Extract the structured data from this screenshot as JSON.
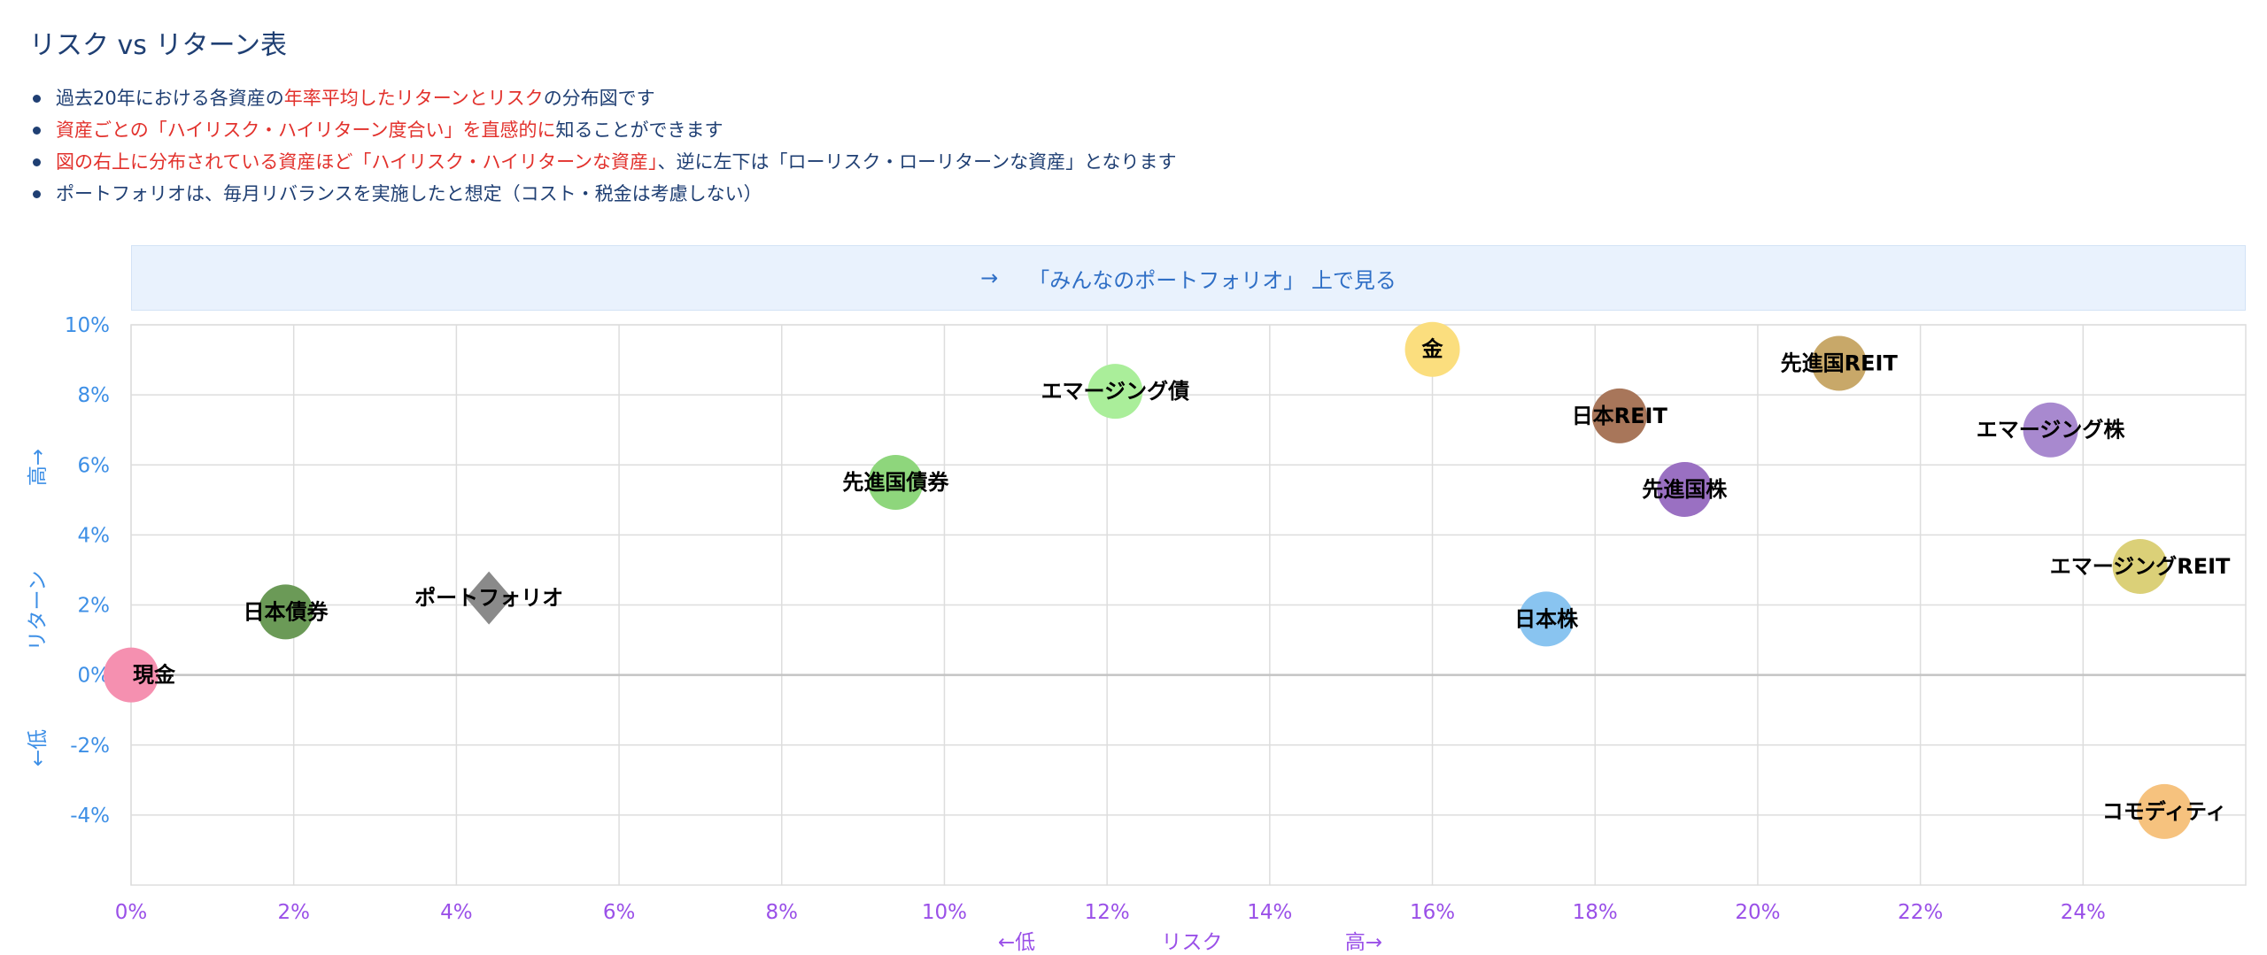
{
  "title": "リスク vs リターン表",
  "notes": [
    {
      "parts": [
        {
          "text": "過去20年における各資産の",
          "hl": false
        },
        {
          "text": "年率平均したリターンとリスク",
          "hl": true
        },
        {
          "text": "の分布図です",
          "hl": false
        }
      ]
    },
    {
      "parts": [
        {
          "text": "資産ごとの「ハイリスク・ハイリターン度合い」を直感的に",
          "hl": true
        },
        {
          "text": "知ることができます",
          "hl": false
        }
      ]
    },
    {
      "parts": [
        {
          "text": "図の右上に分布されている資産ほど「ハイリスク・ハイリターンな資産」",
          "hl": true
        },
        {
          "text": "、逆に左下は「ローリスク・ローリターンな資産」となります",
          "hl": false
        }
      ]
    },
    {
      "parts": [
        {
          "text": "ポートフォリオは、毎月リバランスを実施したと想定（コスト・税金は考慮しない）",
          "hl": false
        }
      ]
    }
  ],
  "banner": {
    "arrow": "→",
    "label": "「みんなのポートフォリオ」 上で見る"
  },
  "chart_data": {
    "type": "scatter",
    "xlim": [
      0,
      26
    ],
    "ylim": [
      -6,
      10
    ],
    "x_ticks": [
      0,
      2,
      4,
      6,
      8,
      10,
      12,
      14,
      16,
      18,
      20,
      22,
      24
    ],
    "y_ticks": [
      10,
      8,
      6,
      4,
      2,
      0,
      -2,
      -4
    ],
    "tick_suffix": "%",
    "grid": true,
    "xlabel": {
      "low": "←低",
      "center": "リスク",
      "high": "高→"
    },
    "ylabel": {
      "high": "高→",
      "center": "リターン",
      "low": "←低"
    },
    "points": [
      {
        "name": "現金",
        "x": 0.0,
        "y": 0.0,
        "color": "#f590b0",
        "shape": "circle"
      },
      {
        "name": "日本債券",
        "x": 1.9,
        "y": 1.8,
        "color": "#6b9a57",
        "shape": "circle"
      },
      {
        "name": "ポートフォリオ",
        "x": 4.4,
        "y": 2.2,
        "color": "#8a8a8a",
        "shape": "diamond"
      },
      {
        "name": "先進国債券",
        "x": 9.4,
        "y": 5.5,
        "color": "#8ed67c",
        "shape": "circle"
      },
      {
        "name": "エマージング債",
        "x": 12.1,
        "y": 8.1,
        "color": "#aaee9a",
        "shape": "circle"
      },
      {
        "name": "金",
        "x": 16.0,
        "y": 9.3,
        "color": "#fbde7e",
        "shape": "circle"
      },
      {
        "name": "日本株",
        "x": 17.4,
        "y": 1.6,
        "color": "#89c4f0",
        "shape": "circle"
      },
      {
        "name": "日本REIT",
        "x": 18.3,
        "y": 7.4,
        "color": "#a8765a",
        "shape": "circle"
      },
      {
        "name": "先進国株",
        "x": 19.1,
        "y": 5.3,
        "color": "#9a70c2",
        "shape": "circle"
      },
      {
        "name": "先進国REIT",
        "x": 21.0,
        "y": 8.9,
        "color": "#c8a869",
        "shape": "circle"
      },
      {
        "name": "エマージング株",
        "x": 23.6,
        "y": 7.0,
        "color": "#a889cf",
        "shape": "circle"
      },
      {
        "name": "エマージングREIT",
        "x": 24.7,
        "y": 3.1,
        "color": "#dbd078",
        "shape": "circle"
      },
      {
        "name": "コモディティ",
        "x": 25.0,
        "y": -3.9,
        "color": "#f6c27e",
        "shape": "circle"
      }
    ]
  }
}
